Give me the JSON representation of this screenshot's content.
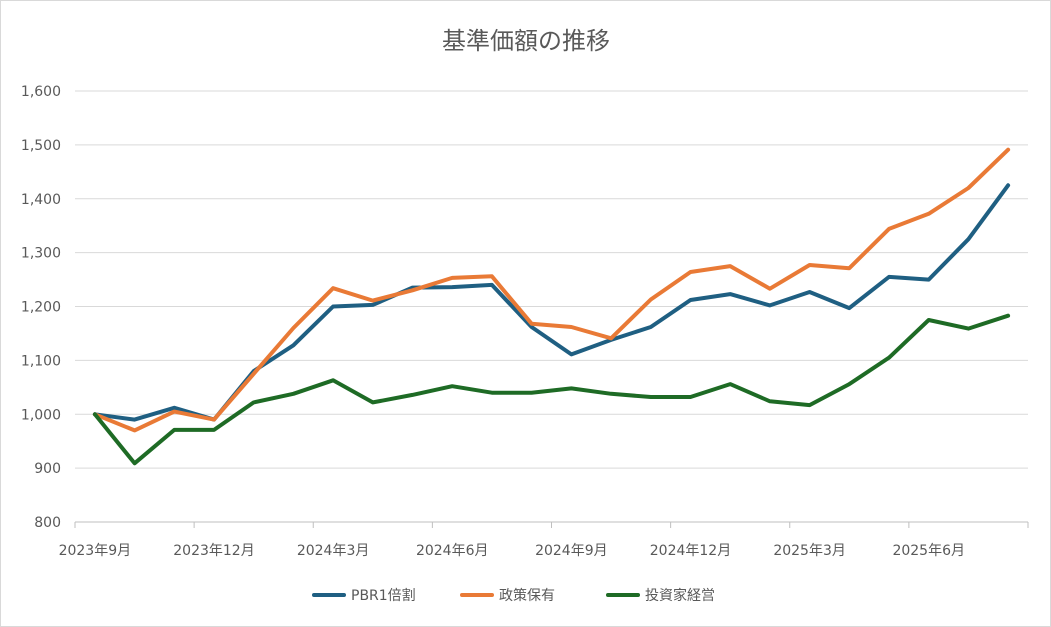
{
  "chart_data": {
    "type": "line",
    "title": "基準価額の推移",
    "x_tick_labels": [
      "2023年9月",
      "2023年12月",
      "2024年3月",
      "2024年6月",
      "2024年9月",
      "2024年12月",
      "2025年3月",
      "2025年6月"
    ],
    "x": [
      "2023-09",
      "2023-10",
      "2023-11",
      "2023-12",
      "2024-01",
      "2024-02",
      "2024-03",
      "2024-04",
      "2024-05",
      "2024-06",
      "2024-07",
      "2024-08",
      "2024-09",
      "2024-10",
      "2024-11",
      "2024-12",
      "2025-01",
      "2025-02",
      "2025-03",
      "2025-04",
      "2025-05",
      "2025-06",
      "2025-07",
      "2025-08"
    ],
    "ylim": [
      800,
      1600
    ],
    "yticks": [
      800,
      900,
      1000,
      1100,
      1200,
      1300,
      1400,
      1500,
      1600
    ],
    "grid": true,
    "legend_position": "bottom",
    "series": [
      {
        "name": "PBR1倍割",
        "color": "#1f5f82",
        "values": [
          1000,
          990,
          1012,
          990,
          1080,
          1128,
          1200,
          1203,
          1235,
          1236,
          1240,
          1162,
          1111,
          1138,
          1162,
          1212,
          1223,
          1202,
          1227,
          1197,
          1255,
          1250,
          1325,
          1425
        ]
      },
      {
        "name": "政策保有",
        "color": "#e97a36",
        "values": [
          1000,
          970,
          1005,
          990,
          1075,
          1160,
          1234,
          1211,
          1230,
          1253,
          1256,
          1168,
          1162,
          1141,
          1213,
          1264,
          1275,
          1233,
          1277,
          1271,
          1344,
          1372,
          1420,
          1491
        ]
      },
      {
        "name": "投資家経営",
        "color": "#1e6b25",
        "values": [
          1000,
          909,
          971,
          971,
          1022,
          1038,
          1063,
          1022,
          1036,
          1052,
          1040,
          1040,
          1048,
          1038,
          1032,
          1032,
          1056,
          1024,
          1017,
          1056,
          1105,
          1175,
          1159,
          1183
        ]
      }
    ]
  }
}
